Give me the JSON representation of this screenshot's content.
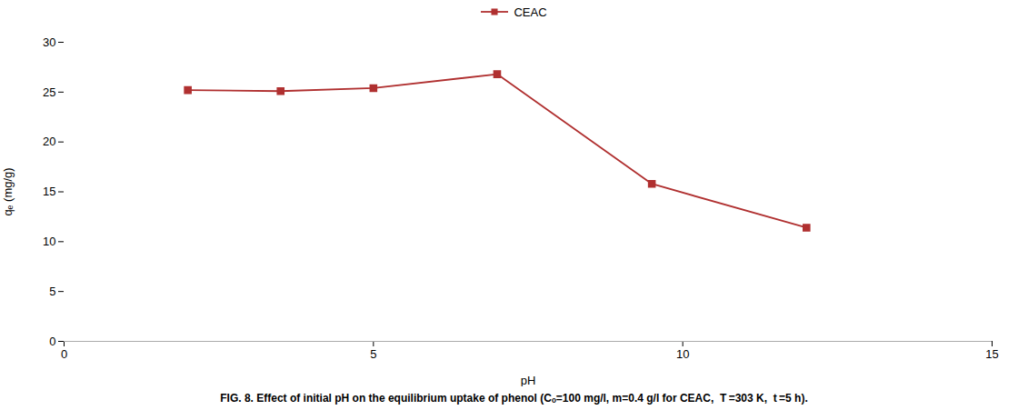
{
  "chart_data": {
    "type": "line",
    "title": "FIG. 8. Effect of initial pH on the equilibrium uptake of phenol (Cₒ=100 mg/l, m=0.4 g/l for CEAC,  T =303 K,  t =5 h).",
    "xlabel": "pH",
    "ylabel": "qₑ (mg/g)",
    "x": [
      2,
      3.5,
      5,
      7,
      9.5,
      12
    ],
    "series": [
      {
        "name": "CEAC",
        "color": "#b03030",
        "marker": "square",
        "values": [
          25.2,
          25.1,
          25.4,
          26.8,
          15.8,
          11.4
        ]
      }
    ],
    "xlim": [
      0,
      15
    ],
    "ylim": [
      0,
      30
    ],
    "xticks": [
      0,
      5,
      10,
      15
    ],
    "yticks": [
      0,
      5,
      10,
      15,
      20,
      25,
      30
    ],
    "grid": false
  }
}
